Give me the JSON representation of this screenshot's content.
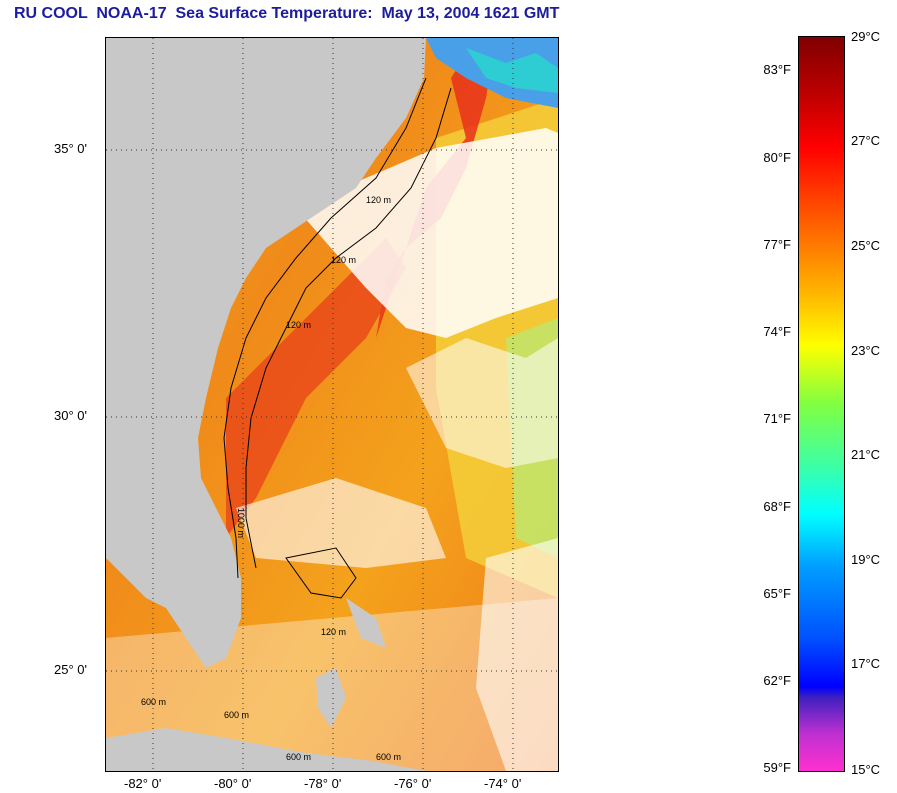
{
  "title": "RU COOL  NOAA-17  Sea Surface Temperature:  May 13, 2004 1621 GMT",
  "map": {
    "lat_labels": [
      "35° 0'",
      "30° 0'",
      "25° 0'"
    ],
    "lon_labels": [
      "-82° 0'",
      "-80° 0'",
      "-78° 0'",
      "-76° 0'",
      "-74° 0'"
    ],
    "contour_labels": [
      "120 m",
      "120 m",
      "120 m",
      "1000 m",
      "600 m",
      "600 m",
      "600 m",
      "600 m",
      "120 m"
    ],
    "colors": {
      "land": "#c8c8c8",
      "cloud": "#ffffff",
      "ocean_warm": "#f07a1a",
      "ocean_hot": "#e8301a",
      "ocean_mid": "#f7c21c",
      "ocean_cool": "#9ee57a"
    }
  },
  "colorbar": {
    "fahrenheit": [
      "83°F",
      "80°F",
      "77°F",
      "74°F",
      "71°F",
      "68°F",
      "65°F",
      "62°F",
      "59°F"
    ],
    "celsius": [
      "29°C",
      "27°C",
      "25°C",
      "23°C",
      "21°C",
      "19°C",
      "17°C",
      "15°C"
    ]
  }
}
